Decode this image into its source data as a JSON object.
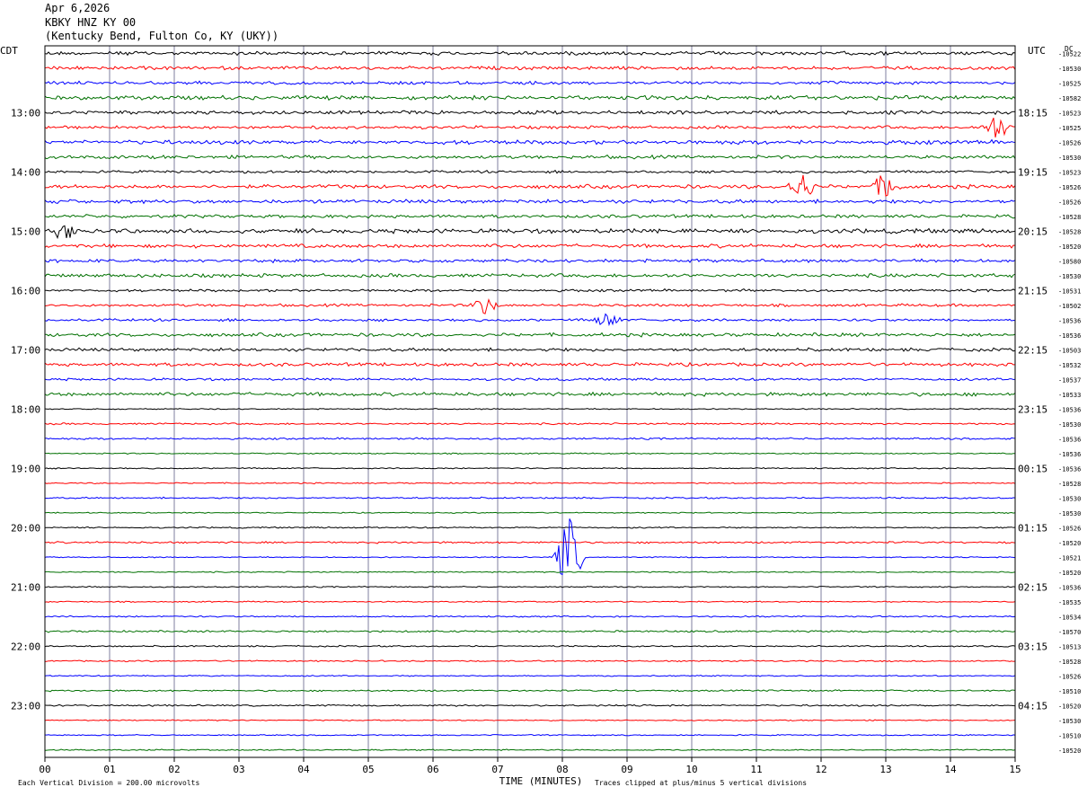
{
  "header": {
    "date": "Apr 6,2026",
    "station": "KBKY HNZ KY 00",
    "location": "(Kentucky Bend, Fulton Co, KY (UKY))"
  },
  "footer": {
    "scale_note": "Each Vertical Division =  200.00 microvolts",
    "clip_note": "Traces clipped at plus/minus 5 vertical divisions"
  },
  "colors": {
    "trace_cycle": [
      "#000000",
      "#ff0000",
      "#0000ff",
      "#007000"
    ],
    "grid": "#7f7f9f"
  },
  "chart_data": {
    "type": "line",
    "description_type": "helicorder",
    "xlabel": "TIME (MINUTES)",
    "x_ticks": [
      "00",
      "01",
      "02",
      "03",
      "04",
      "05",
      "06",
      "07",
      "08",
      "09",
      "10",
      "11",
      "12",
      "13",
      "14",
      "15"
    ],
    "xlim": [
      0,
      15
    ],
    "left_axis_title": "CDT",
    "right_axis_title": "UTC",
    "dc_label": "DC",
    "left_hour_labels": [
      "13:00",
      "14:00",
      "15:00",
      "16:00",
      "17:00",
      "18:00",
      "19:00",
      "20:00",
      "21:00",
      "22:00",
      "23:00"
    ],
    "right_hour_labels": [
      "18:15",
      "19:15",
      "20:15",
      "21:15",
      "22:15",
      "23:15",
      "00:15",
      "01:15",
      "02:15",
      "03:15",
      "04:15"
    ],
    "hour_label_first_row": 4,
    "rows_per_hour": 4,
    "n_traces": 48,
    "dc_offsets": [
      "-10522",
      "-10530",
      "-10525",
      "-10582",
      "-10523",
      "-10525",
      "-10526",
      "-10530",
      "-10523",
      "-10526",
      "-10526",
      "-10528",
      "-10528",
      "-10520",
      "-10580",
      "-10530",
      "-10531",
      "-10502",
      "-10536",
      "-10536",
      "-10503",
      "-10532",
      "-10537",
      "-10533",
      "-10536",
      "-10530",
      "-10536",
      "-10536",
      "-10536",
      "-10528",
      "-10530",
      "-10530",
      "-10526",
      "-10520",
      "-10521",
      "-10520",
      "-10536",
      "-10535",
      "-10534",
      "-10570",
      "-10513",
      "-10528",
      "-10526",
      "-10510",
      "-10520",
      "-10530",
      "-10510",
      "-10520"
    ],
    "events": [
      {
        "trace": 5,
        "minute": 14.7,
        "amplitude": 0.9
      },
      {
        "trace": 9,
        "minute": 11.7,
        "amplitude": 1.0
      },
      {
        "trace": 9,
        "minute": 13.0,
        "amplitude": 0.9
      },
      {
        "trace": 12,
        "minute": 0.3,
        "amplitude": 0.6
      },
      {
        "trace": 17,
        "minute": 6.8,
        "amplitude": 0.6
      },
      {
        "trace": 18,
        "minute": 8.7,
        "amplitude": 0.5
      },
      {
        "trace": 34,
        "minute": 8.1,
        "amplitude": 2.8
      }
    ]
  }
}
